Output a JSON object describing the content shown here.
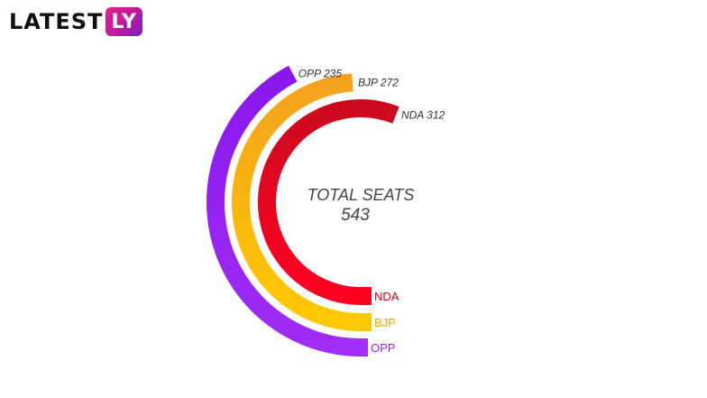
{
  "brand": {
    "name_part1": "LATEST",
    "name_part2": "LY"
  },
  "chart_data": {
    "type": "radial-bar",
    "center_label": "TOTAL SEATS",
    "center_value": "543",
    "total": 543,
    "series": [
      {
        "key": "NDA",
        "value": 312,
        "top_label": "NDA 312",
        "bottom_label": "NDA",
        "color_start": "#cc0a1e",
        "color_end": "#ff0022",
        "label_color": "#e2001f"
      },
      {
        "key": "BJP",
        "value": 272,
        "top_label": "BJP 272",
        "bottom_label": "BJP",
        "color_start": "#f4a21e",
        "color_end": "#ffc900",
        "label_color": "#f1a800"
      },
      {
        "key": "OPP",
        "value": 235,
        "top_label": "OPP 235",
        "bottom_label": "OPP",
        "color_start": "#8a18ee",
        "color_end": "#a02cf7",
        "label_color": "#9a22f2"
      }
    ]
  }
}
